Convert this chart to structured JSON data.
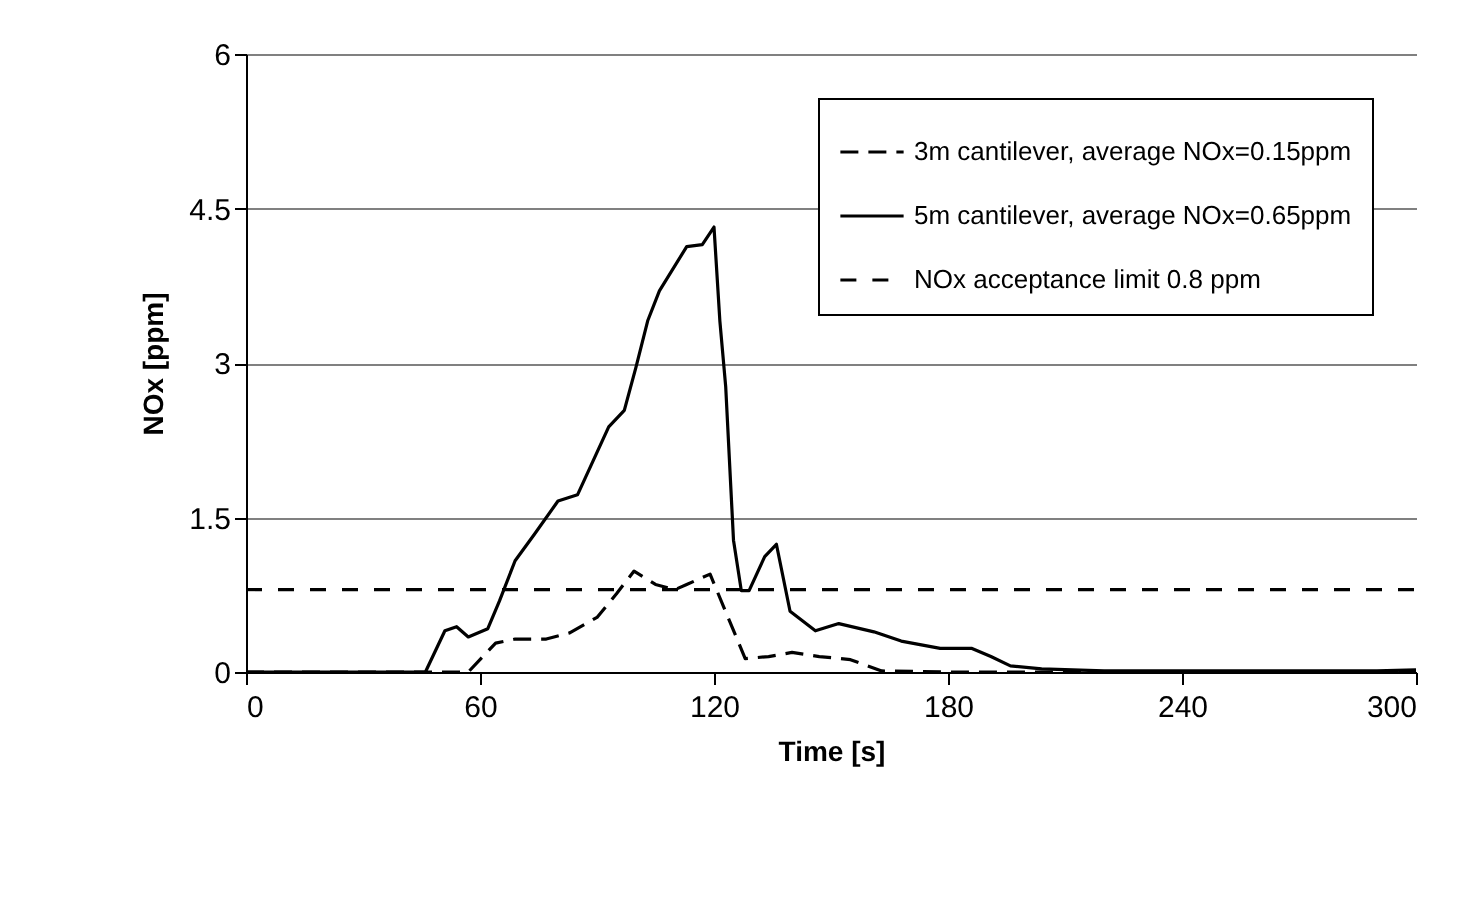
{
  "chart_data": {
    "type": "line",
    "xlabel": "Time [s]",
    "ylabel": "NOx [ppm]",
    "xlim": [
      0,
      300
    ],
    "xticks": [
      0,
      60,
      120,
      180,
      240,
      300
    ],
    "ylim": [
      0,
      6
    ],
    "yticks": [
      0,
      1.5,
      3,
      4.5,
      6
    ],
    "grid": "y",
    "legend": "top right",
    "marker": "none",
    "series": [
      {
        "name": "3m cantilever, average NOx=0.15ppm",
        "color": "#000000",
        "line_style": "dashed",
        "x": [
          0,
          57,
          64,
          69,
          77,
          83,
          90,
          95,
          99.5,
          105,
          110,
          113,
          119,
          122.5,
          128,
          134,
          140,
          147,
          155,
          163,
          180,
          240,
          300
        ],
        "values": [
          0,
          0,
          0.28,
          0.32,
          0.32,
          0.38,
          0.53,
          0.76,
          0.98,
          0.85,
          0.8,
          0.85,
          0.95,
          0.63,
          0.13,
          0.15,
          0.19,
          0.15,
          0.12,
          0.01,
          0,
          0,
          0
        ]
      },
      {
        "name": "5m cantilever, average NOx=0.65ppm",
        "color": "#000000",
        "line_style": "solid",
        "x": [
          0,
          46,
          51,
          54,
          57,
          62,
          65,
          69,
          74,
          80,
          85,
          89,
          93,
          97,
          100,
          103,
          106,
          113,
          117,
          120,
          121.5,
          123,
          125,
          127,
          129,
          133,
          136,
          139.5,
          146,
          152,
          161,
          168,
          178,
          186,
          191,
          196,
          204,
          220,
          290,
          300
        ],
        "values": [
          0,
          0,
          0.4,
          0.44,
          0.34,
          0.42,
          0.69,
          1.08,
          1.34,
          1.66,
          1.72,
          2.05,
          2.38,
          2.54,
          2.96,
          3.41,
          3.7,
          4.13,
          4.15,
          4.32,
          3.41,
          2.77,
          1.28,
          0.79,
          0.79,
          1.12,
          1.24,
          0.59,
          0.4,
          0.47,
          0.39,
          0.3,
          0.23,
          0.23,
          0.15,
          0.06,
          0.03,
          0.01,
          0.01,
          0.02
        ]
      },
      {
        "name": "NOx acceptance limit 0.8 ppm",
        "color": "#000000",
        "line_style": "dotted",
        "x": [
          0,
          300
        ],
        "values": [
          0.8,
          0.8
        ]
      }
    ]
  }
}
